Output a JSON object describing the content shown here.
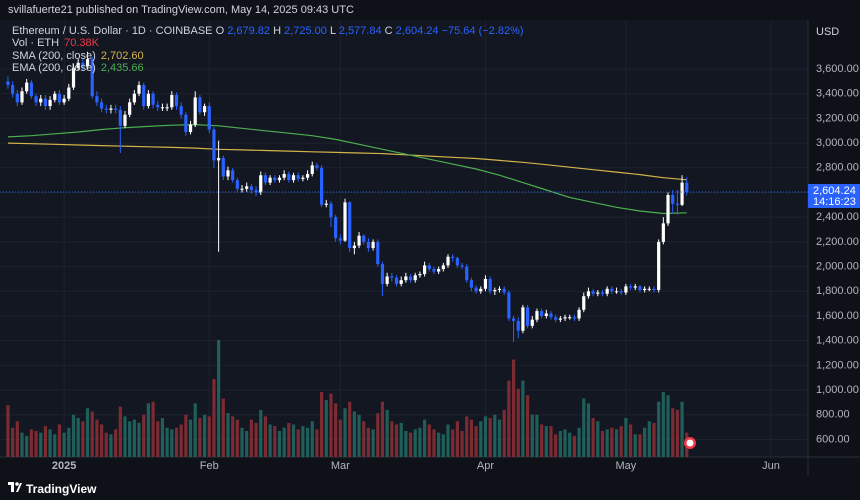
{
  "header": {
    "publisher": "svillafuerte21 published on TradingView.com, May 14, 2025 09:43 UTC"
  },
  "legend": {
    "symbol": "Ethereum / U.S. Dollar · 1D · COINBASE",
    "ohlc": [
      {
        "label": "O",
        "value": "2,679.82"
      },
      {
        "label": "H",
        "value": "2,725.00"
      },
      {
        "label": "L",
        "value": "2,577.84"
      },
      {
        "label": "C",
        "value": "2,604.24"
      }
    ],
    "change": "−75.64 (−2.82%)",
    "volume_label": "Vol · ETH",
    "volume_value": "70.38K"
  },
  "chart_data": {
    "type": "candlestick",
    "currency": "USD",
    "candles": {
      "open": [
        3500,
        3470,
        3400,
        3330,
        3420,
        3490,
        3380,
        3330,
        3360,
        3300,
        3350,
        3400,
        3330,
        3360,
        3450,
        3610,
        3650,
        3620,
        3680,
        3380,
        3330,
        3280,
        3270,
        3280,
        3270,
        3140,
        3230,
        3330,
        3400,
        3470,
        3300,
        3400,
        3310,
        3290,
        3290,
        3290,
        3390,
        3300,
        3230,
        3090,
        3150,
        3370,
        3250,
        3300,
        3110,
        2860,
        2880,
        2730,
        2780,
        2700,
        2630,
        2630,
        2650,
        2620,
        2600,
        2740,
        2680,
        2720,
        2700,
        2720,
        2750,
        2700,
        2740,
        2710,
        2720,
        2750,
        2820,
        2800,
        2500,
        2510,
        2400,
        2230,
        2210,
        2520,
        2150,
        2170,
        2250,
        2200,
        2150,
        2200,
        2020,
        1860,
        1920,
        1910,
        1860,
        1890,
        1920,
        1890,
        1930,
        1940,
        2010,
        1980,
        1960,
        1980,
        2010,
        2080,
        2070,
        2010,
        2000,
        1890,
        1830,
        1800,
        1820,
        1900,
        1800,
        1810,
        1820,
        1790,
        1580,
        1560,
        1480,
        1670,
        1520,
        1570,
        1640,
        1600,
        1620,
        1590,
        1570,
        1580,
        1590,
        1590,
        1580,
        1650,
        1760,
        1800,
        1780,
        1790,
        1780,
        1820,
        1800,
        1800,
        1790,
        1840,
        1830,
        1840,
        1810,
        1820,
        1820,
        1810,
        2200,
        2350,
        2580,
        2510,
        2500,
        2679.82
      ],
      "high": [
        3540,
        3500,
        3430,
        3450,
        3520,
        3510,
        3400,
        3390,
        3390,
        3380,
        3420,
        3430,
        3390,
        3480,
        3640,
        3680,
        3680,
        3740,
        3700,
        3420,
        3360,
        3310,
        3310,
        3310,
        3300,
        3260,
        3360,
        3430,
        3500,
        3490,
        3430,
        3420,
        3340,
        3320,
        3320,
        3420,
        3410,
        3330,
        3250,
        3180,
        3420,
        3390,
        3320,
        3330,
        3130,
        3020,
        2900,
        2810,
        2800,
        2720,
        2660,
        2680,
        2670,
        2650,
        2770,
        2760,
        2740,
        2740,
        2740,
        2780,
        2770,
        2760,
        2760,
        2740,
        2780,
        2850,
        2840,
        2820,
        2540,
        2530,
        2420,
        2260,
        2550,
        2530,
        2200,
        2280,
        2260,
        2230,
        2220,
        2220,
        2040,
        1950,
        1950,
        1930,
        1920,
        1950,
        1940,
        1950,
        1960,
        2040,
        2030,
        2000,
        2000,
        2030,
        2100,
        2100,
        2080,
        2030,
        2020,
        1910,
        1850,
        1840,
        1930,
        1920,
        1830,
        1840,
        1840,
        1810,
        1600,
        1590,
        1690,
        1690,
        1600,
        1660,
        1660,
        1650,
        1640,
        1610,
        1600,
        1610,
        1610,
        1610,
        1670,
        1790,
        1830,
        1820,
        1810,
        1810,
        1840,
        1840,
        1830,
        1820,
        1860,
        1860,
        1860,
        1850,
        1840,
        1840,
        1840,
        2220,
        2400,
        2600,
        2620,
        2620,
        2740,
        2725
      ],
      "low": [
        3440,
        3370,
        3300,
        3310,
        3400,
        3360,
        3300,
        3300,
        3270,
        3270,
        3330,
        3310,
        3310,
        3340,
        3430,
        3590,
        3590,
        3600,
        3360,
        3300,
        3250,
        3240,
        3240,
        3240,
        2920,
        3120,
        3210,
        3310,
        3380,
        3270,
        3280,
        3280,
        3260,
        3260,
        3260,
        3270,
        3270,
        3200,
        3060,
        3070,
        3130,
        3230,
        3220,
        3080,
        2800,
        2120,
        2700,
        2700,
        2680,
        2600,
        2600,
        2600,
        2590,
        2570,
        2580,
        2660,
        2660,
        2680,
        2680,
        2700,
        2680,
        2680,
        2690,
        2690,
        2700,
        2730,
        2780,
        2480,
        2480,
        2320,
        2200,
        2180,
        2200,
        2120,
        2100,
        2150,
        2180,
        2120,
        2130,
        2000,
        1760,
        1840,
        1880,
        1840,
        1840,
        1870,
        1870,
        1870,
        1910,
        1920,
        1960,
        1940,
        1940,
        1960,
        1990,
        2040,
        1990,
        1980,
        1870,
        1800,
        1780,
        1780,
        1800,
        1780,
        1770,
        1790,
        1770,
        1560,
        1390,
        1420,
        1460,
        1500,
        1500,
        1550,
        1580,
        1580,
        1570,
        1550,
        1550,
        1560,
        1570,
        1560,
        1560,
        1630,
        1740,
        1760,
        1760,
        1760,
        1760,
        1780,
        1780,
        1770,
        1770,
        1810,
        1810,
        1790,
        1790,
        1800,
        1790,
        1790,
        2180,
        2330,
        2430,
        2420,
        2490,
        2577.84
      ],
      "close": [
        3470,
        3400,
        3330,
        3420,
        3490,
        3380,
        3330,
        3360,
        3300,
        3350,
        3400,
        3330,
        3360,
        3450,
        3610,
        3650,
        3620,
        3680,
        3380,
        3330,
        3280,
        3270,
        3280,
        3270,
        3140,
        3230,
        3330,
        3400,
        3470,
        3300,
        3400,
        3310,
        3290,
        3290,
        3290,
        3390,
        3300,
        3230,
        3090,
        3150,
        3370,
        3250,
        3300,
        3110,
        2860,
        2880,
        2730,
        2780,
        2700,
        2630,
        2630,
        2650,
        2620,
        2600,
        2740,
        2680,
        2720,
        2700,
        2720,
        2750,
        2700,
        2740,
        2710,
        2720,
        2750,
        2820,
        2800,
        2500,
        2510,
        2400,
        2230,
        2210,
        2520,
        2150,
        2170,
        2250,
        2200,
        2150,
        2200,
        2020,
        1860,
        1920,
        1910,
        1860,
        1890,
        1920,
        1890,
        1930,
        1940,
        2010,
        1980,
        1960,
        1980,
        2010,
        2080,
        2070,
        2010,
        2000,
        1890,
        1830,
        1800,
        1820,
        1900,
        1800,
        1810,
        1820,
        1790,
        1580,
        1560,
        1480,
        1670,
        1520,
        1570,
        1640,
        1600,
        1620,
        1590,
        1570,
        1580,
        1590,
        1590,
        1580,
        1650,
        1760,
        1800,
        1780,
        1790,
        1780,
        1820,
        1800,
        1800,
        1790,
        1840,
        1830,
        1840,
        1810,
        1820,
        1820,
        1810,
        2200,
        2350,
        2580,
        2510,
        2500,
        2680,
        2604.24
      ],
      "volume": [
        320,
        180,
        220,
        150,
        130,
        170,
        160,
        150,
        190,
        170,
        140,
        200,
        150,
        180,
        260,
        240,
        220,
        300,
        280,
        230,
        200,
        150,
        140,
        170,
        310,
        250,
        220,
        230,
        210,
        260,
        330,
        340,
        220,
        240,
        180,
        170,
        180,
        200,
        260,
        230,
        330,
        240,
        260,
        250,
        480,
        720,
        360,
        270,
        250,
        230,
        180,
        160,
        230,
        210,
        290,
        250,
        200,
        190,
        160,
        180,
        210,
        200,
        170,
        190,
        180,
        220,
        170,
        400,
        350,
        390,
        330,
        230,
        300,
        340,
        280,
        260,
        220,
        180,
        170,
        270,
        340,
        290,
        220,
        200,
        210,
        160,
        150,
        170,
        180,
        230,
        200,
        170,
        150,
        140,
        200,
        170,
        220,
        160,
        250,
        230,
        190,
        220,
        250,
        240,
        260,
        230,
        290,
        470,
        600,
        420,
        470,
        380,
        260,
        260,
        200,
        190,
        190,
        140,
        160,
        170,
        150,
        130,
        180,
        360,
        330,
        240,
        220,
        160,
        170,
        180,
        170,
        190,
        240,
        200,
        140,
        140,
        180,
        220,
        210,
        340,
        400,
        380,
        300,
        290,
        340,
        150
      ]
    },
    "volume_lim": [
      0,
      800
    ],
    "up_color": "#ffffff",
    "down_color": "#2962ff",
    "series": [
      {
        "name": "SMA (200, close)",
        "color": "#d4b44a",
        "value_label": "2,702.60",
        "x": [
          0,
          5,
          10,
          15,
          20,
          25,
          30,
          35,
          40,
          45,
          50,
          55,
          60,
          65,
          70,
          75,
          80,
          85,
          90,
          95,
          100,
          105,
          110,
          115,
          120,
          125,
          130,
          135,
          140,
          145
        ],
        "values": [
          3000,
          2995,
          2990,
          2985,
          2980,
          2975,
          2970,
          2965,
          2960,
          2950,
          2945,
          2940,
          2935,
          2930,
          2925,
          2920,
          2915,
          2905,
          2895,
          2885,
          2875,
          2860,
          2845,
          2825,
          2805,
          2785,
          2765,
          2745,
          2720,
          2702.6
        ]
      },
      {
        "name": "EMA (200, close)",
        "color": "#4caf50",
        "value_label": "2,435.66",
        "x": [
          0,
          5,
          10,
          15,
          20,
          25,
          30,
          35,
          40,
          45,
          50,
          55,
          60,
          65,
          70,
          75,
          80,
          85,
          90,
          95,
          100,
          105,
          110,
          115,
          120,
          125,
          130,
          135,
          140,
          145
        ],
        "values": [
          3050,
          3060,
          3075,
          3090,
          3110,
          3125,
          3135,
          3145,
          3150,
          3140,
          3120,
          3100,
          3080,
          3060,
          3030,
          2990,
          2950,
          2910,
          2870,
          2830,
          2790,
          2740,
          2680,
          2620,
          2560,
          2520,
          2480,
          2450,
          2430,
          2435.66
        ]
      }
    ],
    "last_price_label": "2,604.24",
    "countdown": "14:16:23",
    "xlim": [
      -1.7,
      170.9
    ],
    "xticks": [
      {
        "value": 12,
        "label": "2025"
      },
      {
        "value": 43,
        "label": "Feb"
      },
      {
        "value": 71,
        "label": "Mar"
      },
      {
        "value": 102,
        "label": "Apr"
      },
      {
        "value": 132,
        "label": "May"
      },
      {
        "value": 163,
        "label": "Jun"
      }
    ],
    "ylim": [
      458,
      3997
    ],
    "yticks": [
      {
        "value": 600,
        "label": "600.00"
      },
      {
        "value": 800,
        "label": "800.00"
      },
      {
        "value": 1000,
        "label": "1,000.00"
      },
      {
        "value": 1200,
        "label": "1,200.00"
      },
      {
        "value": 1400,
        "label": "1,400.00"
      },
      {
        "value": 1600,
        "label": "1,600.00"
      },
      {
        "value": 1800,
        "label": "1,800.00"
      },
      {
        "value": 2000,
        "label": "2,000.00"
      },
      {
        "value": 2200,
        "label": "2,200.00"
      },
      {
        "value": 2400,
        "label": "2,400.00"
      },
      {
        "value": 2600,
        "label": "2,600.00"
      },
      {
        "value": 2800,
        "label": "2,800.00"
      },
      {
        "value": 3000,
        "label": "3,000.00"
      },
      {
        "value": 3200,
        "label": "3,200.00"
      },
      {
        "value": 3400,
        "label": "3,400.00"
      },
      {
        "value": 3600,
        "label": "3,600.00"
      }
    ],
    "grid": true
  },
  "footer": {
    "brand": "TradingView"
  }
}
